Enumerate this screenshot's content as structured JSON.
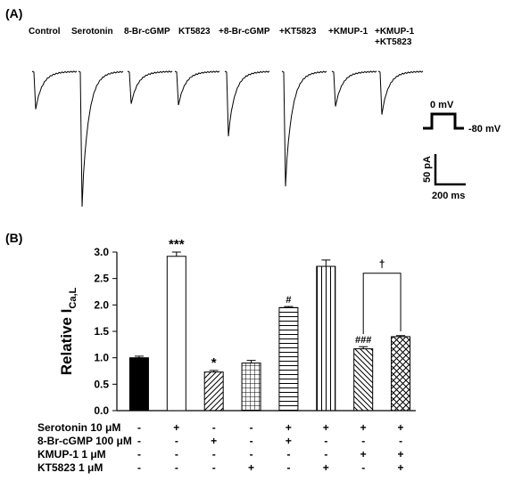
{
  "panel_a": {
    "label": "(A)",
    "conditions": [
      {
        "label": "Control",
        "peak": 0.28
      },
      {
        "label": "Serotonin",
        "peak": 1.0
      },
      {
        "label": "8-Br-cGMP",
        "peak": 0.24
      },
      {
        "label": "KT5823",
        "peak": 0.25
      },
      {
        "label": "+8-Br-cGMP",
        "peak": 0.48
      },
      {
        "label": "+KT5823",
        "peak": 0.85
      },
      {
        "label": "+KMUP-1",
        "peak": 0.26
      },
      {
        "label": "+KMUP-1\n+KT5823",
        "peak": 0.32
      }
    ],
    "protocol": {
      "step_label": "0 mV",
      "hold_label": "-80 mV"
    },
    "scale_bar": {
      "y_label": "50 pA",
      "x_label": "200 ms"
    }
  },
  "panel_b": {
    "label": "(B)",
    "treatment_rows": [
      {
        "label": "Serotonin 10 μM",
        "marks": [
          "-",
          "+",
          "-",
          "-",
          "+",
          "+",
          "+",
          "+"
        ]
      },
      {
        "label": "8-Br-cGMP 100 μM",
        "marks": [
          "-",
          "-",
          "+",
          "-",
          "+",
          "-",
          "-",
          "-"
        ]
      },
      {
        "label": "KMUP-1 1 μM",
        "marks": [
          "-",
          "-",
          "-",
          "-",
          "-",
          "-",
          "+",
          "+"
        ]
      },
      {
        "label": "KT5823 1 μM",
        "marks": [
          "-",
          "-",
          "-",
          "+",
          "-",
          "+",
          "-",
          "+"
        ]
      }
    ],
    "bracket_symbol": "†"
  },
  "chart_data": {
    "type": "bar",
    "ylabel_main": "Relative I",
    "ylabel_sub": "Ca,L",
    "ylim": [
      0,
      3.0
    ],
    "yticks": [
      "0.0",
      "0.5",
      "1.0",
      "1.5",
      "2.0",
      "2.5",
      "3.0"
    ],
    "values": [
      1.0,
      2.92,
      0.73,
      0.9,
      1.95,
      2.73,
      1.17,
      1.4
    ],
    "errors": [
      0.03,
      0.08,
      0.03,
      0.05,
      0.02,
      0.12,
      0.04,
      0.02
    ],
    "fills": [
      "solid",
      "white",
      "diag-up",
      "grid",
      "hlines",
      "vlines",
      "diag-down",
      "crosshatch"
    ],
    "annotations": [
      "",
      "***",
      "*",
      "",
      "#",
      "",
      "###",
      ""
    ]
  }
}
